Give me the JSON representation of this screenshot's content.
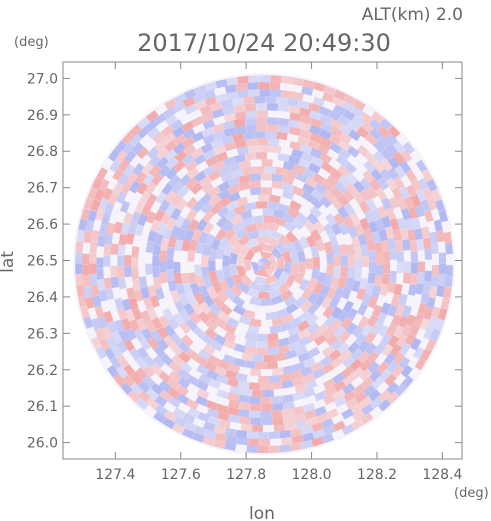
{
  "header": {
    "altitude_label": "ALT(km) 2.0",
    "timestamp": "2017/10/24 20:49:30"
  },
  "chart_data": {
    "type": "heatmap",
    "title": "2017/10/24 20:49:30",
    "xlabel": "lon",
    "ylabel": "lat",
    "x_unit": "(deg)",
    "y_unit": "(deg)",
    "xlim": [
      127.24,
      128.46
    ],
    "ylim": [
      25.955,
      27.045
    ],
    "x_ticks": [
      127.4,
      127.6,
      127.8,
      128.0,
      128.2,
      128.4
    ],
    "x_tick_labels": [
      "127.4",
      "127.6",
      "127.8",
      "128.0",
      "128.2",
      "128.4"
    ],
    "y_ticks": [
      26.0,
      26.1,
      26.2,
      26.3,
      26.4,
      26.5,
      26.6,
      26.7,
      26.8,
      26.9,
      27.0
    ],
    "y_tick_labels": [
      "26.0",
      "26.1",
      "26.2",
      "26.3",
      "26.4",
      "26.5",
      "26.6",
      "26.7",
      "26.8",
      "26.9",
      "27.0"
    ],
    "radar_center": {
      "lon": 127.855,
      "lat": 26.49
    },
    "radar_radius_deg_lat": 0.525,
    "colors": {
      "positive": "#f2a0a0",
      "negative": "#a8b0f0",
      "axis": "#888888",
      "text": "#666666"
    },
    "grid": false
  }
}
